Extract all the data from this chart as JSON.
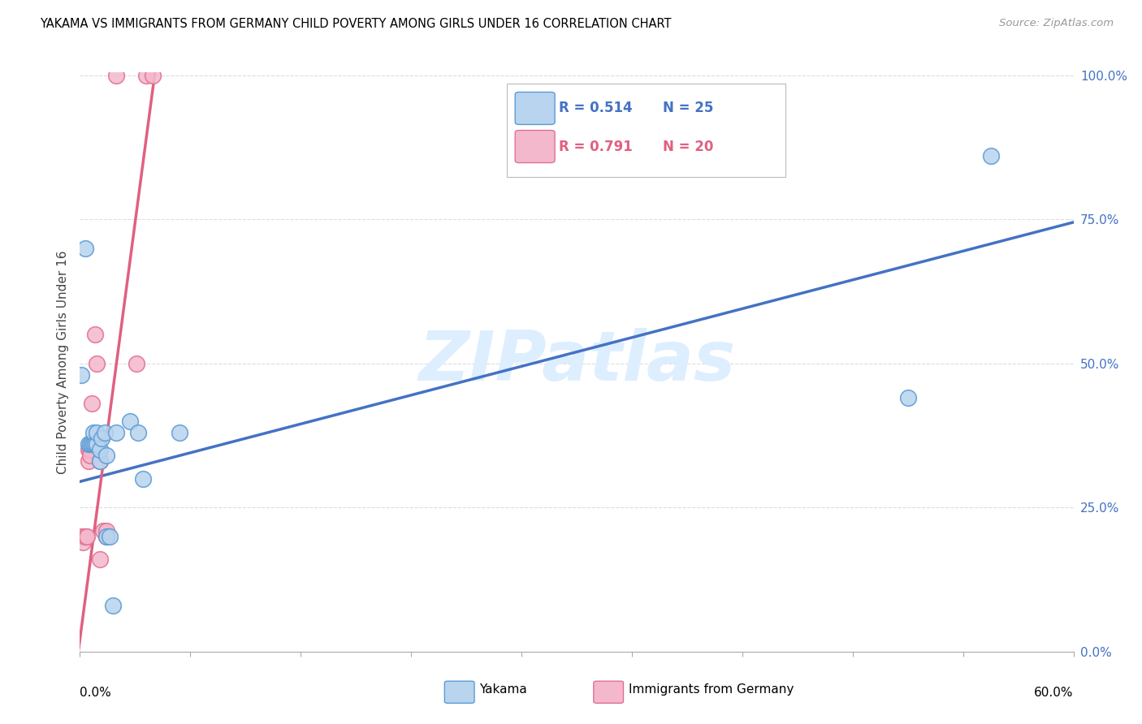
{
  "title": "YAKAMA VS IMMIGRANTS FROM GERMANY CHILD POVERTY AMONG GIRLS UNDER 16 CORRELATION CHART",
  "source": "Source: ZipAtlas.com",
  "ylabel": "Child Poverty Among Girls Under 16",
  "legend_blue_r": "R = 0.514",
  "legend_blue_n": "N = 25",
  "legend_pink_r": "R = 0.791",
  "legend_pink_n": "N = 20",
  "legend_label_blue": "Yakama",
  "legend_label_pink": "Immigrants from Germany",
  "blue_fill": "#b8d4ee",
  "blue_edge": "#5b9bd5",
  "pink_fill": "#f4b8cc",
  "pink_edge": "#e07090",
  "trend_blue_color": "#4472c4",
  "trend_pink_color": "#e06080",
  "watermark": "ZIPatlas",
  "watermark_color": "#ddeeff",
  "blue_scatter_x": [
    0.001,
    0.003,
    0.005,
    0.006,
    0.007,
    0.008,
    0.008,
    0.009,
    0.01,
    0.01,
    0.012,
    0.012,
    0.013,
    0.015,
    0.016,
    0.016,
    0.018,
    0.02,
    0.022,
    0.03,
    0.035,
    0.038,
    0.06,
    0.5,
    0.55
  ],
  "blue_scatter_y": [
    0.48,
    0.7,
    0.36,
    0.36,
    0.36,
    0.36,
    0.38,
    0.36,
    0.36,
    0.38,
    0.33,
    0.35,
    0.37,
    0.38,
    0.2,
    0.34,
    0.2,
    0.08,
    0.38,
    0.4,
    0.38,
    0.3,
    0.38,
    0.44,
    0.86
  ],
  "pink_scatter_x": [
    0.001,
    0.002,
    0.003,
    0.004,
    0.005,
    0.005,
    0.006,
    0.006,
    0.007,
    0.009,
    0.01,
    0.012,
    0.012,
    0.014,
    0.016,
    0.016,
    0.022,
    0.034,
    0.04,
    0.044
  ],
  "pink_scatter_y": [
    0.2,
    0.19,
    0.2,
    0.2,
    0.33,
    0.35,
    0.35,
    0.34,
    0.43,
    0.55,
    0.5,
    0.16,
    0.33,
    0.21,
    0.2,
    0.21,
    1.0,
    0.5,
    1.0,
    1.0
  ],
  "blue_trend_x": [
    0.0,
    0.6
  ],
  "blue_trend_y": [
    0.295,
    0.745
  ],
  "pink_trend_x": [
    -0.001,
    0.046
  ],
  "pink_trend_y": [
    0.0,
    1.02
  ],
  "xmin": 0.0,
  "xmax": 0.6,
  "ymin": 0.0,
  "ymax": 1.005,
  "yticks": [
    0.0,
    0.25,
    0.5,
    0.75,
    1.0
  ],
  "ytick_labels": [
    "0.0%",
    "25.0%",
    "50.0%",
    "75.0%",
    "100.0%"
  ],
  "xtick_left_label": "0.0%",
  "xtick_right_label": "60.0%"
}
